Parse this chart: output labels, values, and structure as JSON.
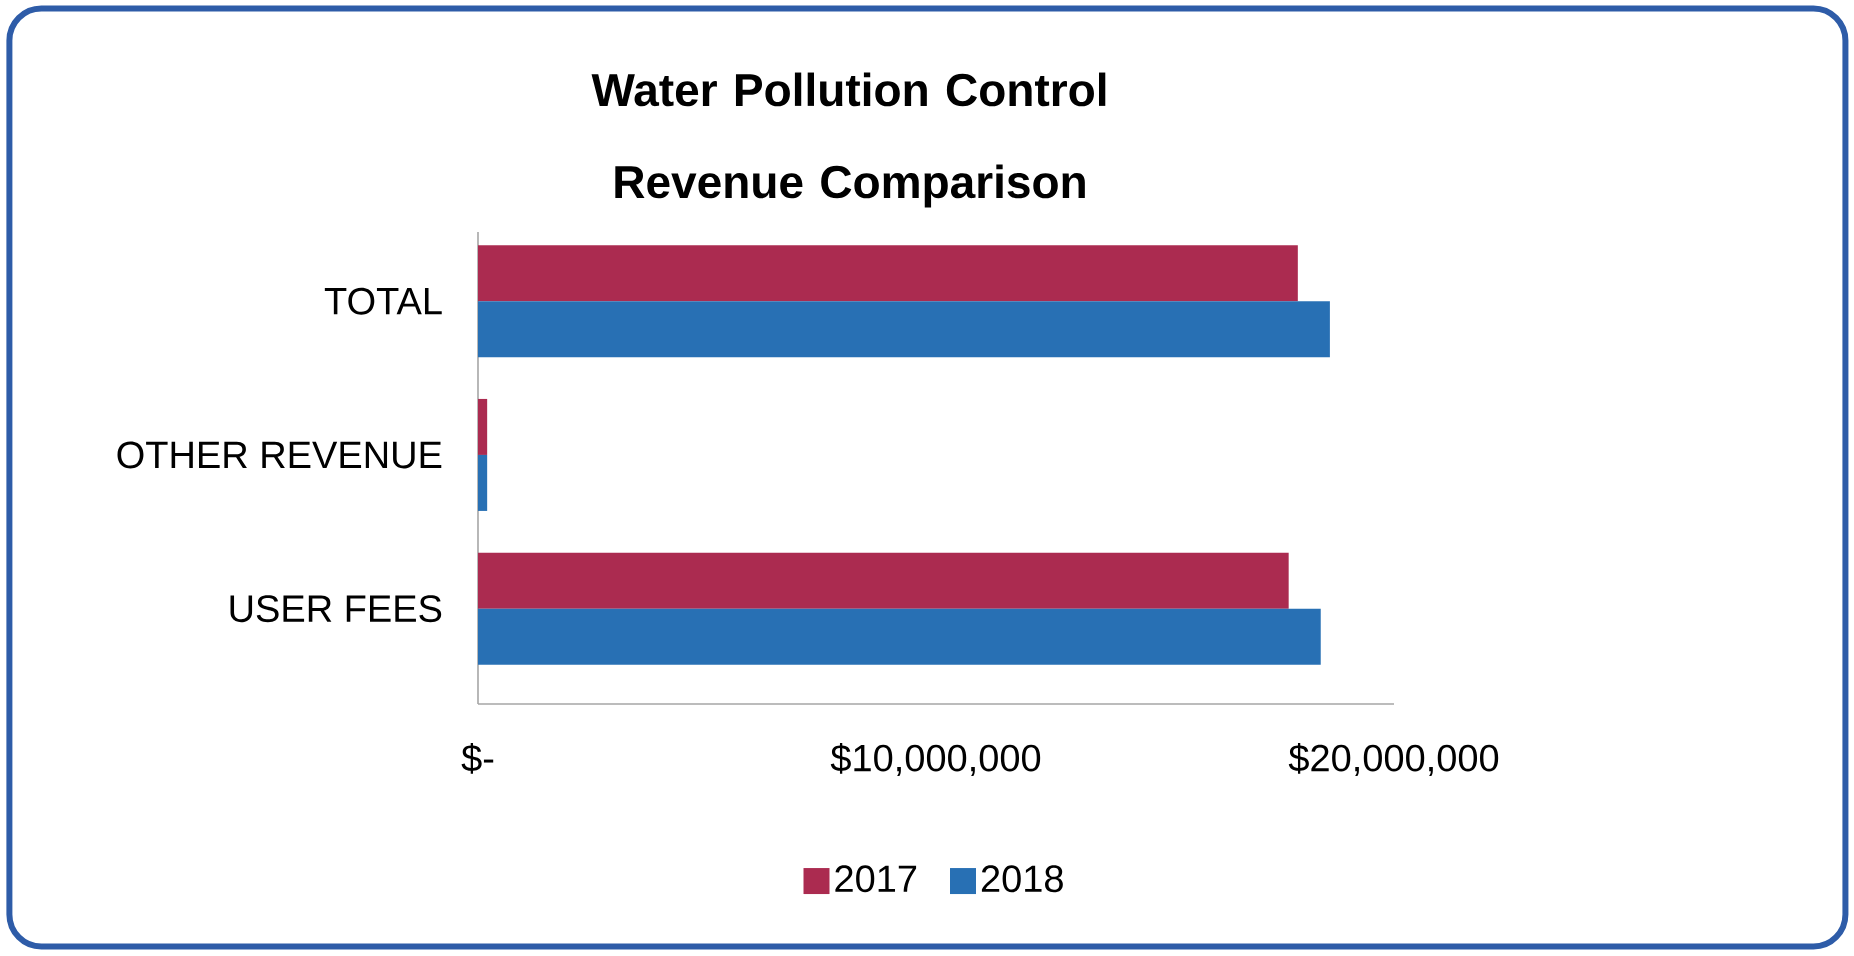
{
  "chart_data": {
    "type": "bar",
    "orientation": "horizontal",
    "title": "Water Pollution Control Revenue Comparison",
    "categories": [
      "TOTAL",
      "OTHER REVENUE",
      "USER FEES"
    ],
    "series": [
      {
        "name": "2017",
        "color": "#ab2b50",
        "values": [
          17900000,
          200000,
          17700000
        ]
      },
      {
        "name": "2018",
        "color": "#2870b4",
        "values": [
          18600000,
          200000,
          18400000
        ]
      }
    ],
    "xlim": [
      0,
      20000000
    ],
    "xticks": [
      {
        "value": 0,
        "label": "$-"
      },
      {
        "value": 10000000,
        "label": "$10,000,000"
      },
      {
        "value": 20000000,
        "label": "$20,000,000"
      }
    ],
    "legend": "bottom"
  }
}
